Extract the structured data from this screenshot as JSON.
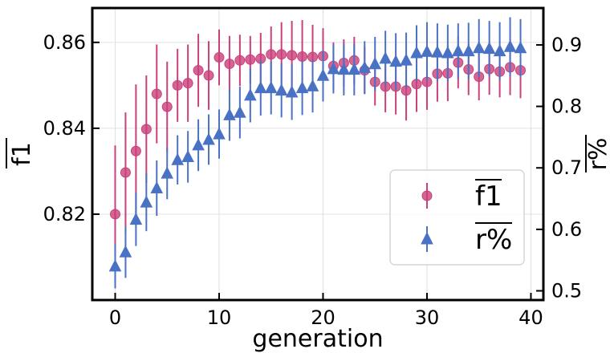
{
  "chart_data": {
    "type": "scatter",
    "xlabel": "generation",
    "ylabel_left": "f1",
    "ylabel_right": "r%",
    "x_ticks": [
      "0",
      "10",
      "20",
      "30",
      "40"
    ],
    "y_left_ticks": [
      "0.82",
      "0.84",
      "0.86"
    ],
    "y_right_ticks": [
      "0.5",
      "0.6",
      "0.7",
      "0.8",
      "0.9"
    ],
    "xlim": [
      -2.2,
      41.2
    ],
    "ylim_left": [
      0.8,
      0.868
    ],
    "ylim_right": [
      0.485,
      0.96
    ],
    "grid": true,
    "legend_position": "center-right",
    "x": [
      0,
      1,
      2,
      3,
      4,
      5,
      6,
      7,
      8,
      9,
      10,
      11,
      12,
      13,
      14,
      15,
      16,
      17,
      18,
      19,
      20,
      21,
      22,
      23,
      24,
      25,
      26,
      27,
      28,
      29,
      30,
      31,
      32,
      33,
      34,
      35,
      36,
      37,
      38,
      39
    ],
    "series": [
      {
        "name": "f1",
        "legend_label": "f1",
        "axis": "left",
        "marker": "circle",
        "color": "#c9407a",
        "values": [
          0.82,
          0.8297,
          0.8347,
          0.8398,
          0.848,
          0.845,
          0.85,
          0.8505,
          0.8535,
          0.8523,
          0.8565,
          0.855,
          0.8558,
          0.856,
          0.8562,
          0.8572,
          0.8572,
          0.857,
          0.8567,
          0.8566,
          0.8568,
          0.8545,
          0.8552,
          0.8558,
          0.8535,
          0.8508,
          0.8497,
          0.8497,
          0.8488,
          0.8503,
          0.8508,
          0.8527,
          0.8528,
          0.8553,
          0.8537,
          0.852,
          0.8538,
          0.8532,
          0.8542,
          0.8535
        ],
        "errors": [
          0.016,
          0.014,
          0.0155,
          0.0125,
          0.0115,
          0.0105,
          0.0085,
          0.009,
          0.0085,
          0.008,
          0.0065,
          0.0065,
          0.006,
          0.0055,
          0.006,
          0.0065,
          0.0075,
          0.008,
          0.0085,
          0.0075,
          0.0065,
          0.0055,
          0.0055,
          0.0055,
          0.0055,
          0.0055,
          0.006,
          0.0065,
          0.007,
          0.0065,
          0.0065,
          0.0065,
          0.0065,
          0.006,
          0.006,
          0.0055,
          0.006,
          0.006,
          0.0065,
          0.0065
        ]
      },
      {
        "name": "r%",
        "legend_label": "r%",
        "axis": "right",
        "marker": "triangle",
        "color": "#4a72c4",
        "values": [
          0.54,
          0.563,
          0.616,
          0.644,
          0.667,
          0.691,
          0.713,
          0.718,
          0.737,
          0.746,
          0.755,
          0.786,
          0.79,
          0.818,
          0.83,
          0.83,
          0.826,
          0.823,
          0.83,
          0.833,
          0.85,
          0.861,
          0.86,
          0.86,
          0.863,
          0.869,
          0.878,
          0.873,
          0.875,
          0.887,
          0.889,
          0.888,
          0.887,
          0.89,
          0.89,
          0.895,
          0.894,
          0.89,
          0.897,
          0.895
        ],
        "errors": [
          0.036,
          0.042,
          0.043,
          0.047,
          0.045,
          0.042,
          0.04,
          0.042,
          0.042,
          0.041,
          0.04,
          0.042,
          0.042,
          0.044,
          0.045,
          0.043,
          0.044,
          0.045,
          0.044,
          0.043,
          0.042,
          0.04,
          0.042,
          0.042,
          0.043,
          0.044,
          0.045,
          0.046,
          0.045,
          0.045,
          0.048,
          0.047,
          0.046,
          0.045,
          0.046,
          0.047,
          0.045,
          0.047,
          0.048,
          0.047
        ]
      }
    ]
  }
}
